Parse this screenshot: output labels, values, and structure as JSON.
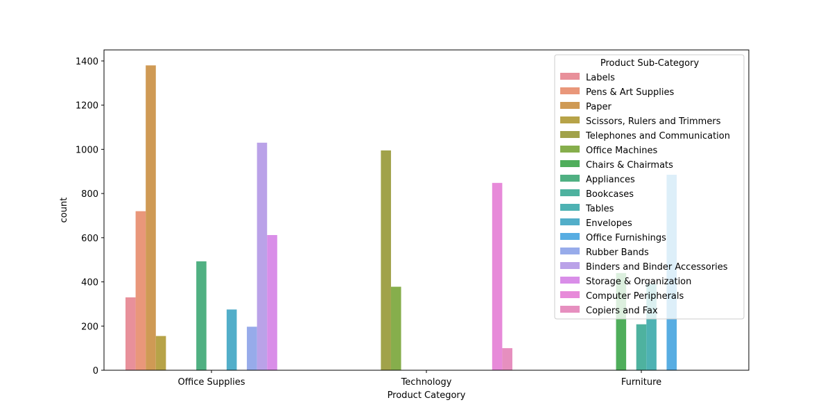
{
  "chart_data": {
    "type": "bar",
    "title": "",
    "xlabel": "Product Category",
    "ylabel": "count",
    "categories": [
      "Office Supplies",
      "Technology",
      "Furniture"
    ],
    "ylim": [
      0,
      1450
    ],
    "yticks": [
      0,
      200,
      400,
      600,
      800,
      1000,
      1200,
      1400
    ],
    "grid": false,
    "legend": {
      "title": "Product Sub-Category",
      "placement": "top-right"
    },
    "series": [
      {
        "name": "Labels",
        "color": "#e8909a",
        "values": [
          330,
          0,
          0
        ]
      },
      {
        "name": "Pens & Art Supplies",
        "color": "#e9977a",
        "values": [
          720,
          0,
          0
        ]
      },
      {
        "name": "Paper",
        "color": "#cf9a55",
        "values": [
          1380,
          0,
          0
        ]
      },
      {
        "name": "Scissors, Rulers and Trimmers",
        "color": "#b7a348",
        "values": [
          155,
          0,
          0
        ]
      },
      {
        "name": "Telephones and Communication",
        "color": "#a1a24a",
        "values": [
          0,
          995,
          0
        ]
      },
      {
        "name": "Office Machines",
        "color": "#86ae4c",
        "values": [
          0,
          378,
          0
        ]
      },
      {
        "name": "Chairs & Chairmats",
        "color": "#4fae5b",
        "values": [
          0,
          0,
          440
        ]
      },
      {
        "name": "Appliances",
        "color": "#50b082",
        "values": [
          493,
          0,
          0
        ]
      },
      {
        "name": "Bookcases",
        "color": "#4eb29f",
        "values": [
          0,
          0,
          208
        ]
      },
      {
        "name": "Tables",
        "color": "#4eb2b3",
        "values": [
          0,
          0,
          390
        ]
      },
      {
        "name": "Envelopes",
        "color": "#52aec9",
        "values": [
          275,
          0,
          0
        ]
      },
      {
        "name": "Office Furnishings",
        "color": "#58ade2",
        "values": [
          0,
          0,
          885
        ]
      },
      {
        "name": "Rubber Bands",
        "color": "#97abea",
        "values": [
          197,
          0,
          0
        ]
      },
      {
        "name": "Binders and Binder Accessories",
        "color": "#baa2e8",
        "values": [
          1030,
          0,
          0
        ]
      },
      {
        "name": "Storage & Organization",
        "color": "#d98ee8",
        "values": [
          612,
          0,
          0
        ]
      },
      {
        "name": "Computer Peripherals",
        "color": "#e78ad9",
        "values": [
          0,
          848,
          0
        ]
      },
      {
        "name": "Copiers and Fax",
        "color": "#e68fbf",
        "values": [
          0,
          100,
          0
        ]
      }
    ]
  }
}
